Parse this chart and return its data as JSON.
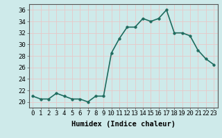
{
  "x": [
    0,
    1,
    2,
    3,
    4,
    5,
    6,
    7,
    8,
    9,
    10,
    11,
    12,
    13,
    14,
    15,
    16,
    17,
    18,
    19,
    20,
    21,
    22,
    23
  ],
  "y": [
    21,
    20.5,
    20.5,
    21.5,
    21,
    20.5,
    20.5,
    20,
    21,
    21,
    28.5,
    31,
    33,
    33,
    34.5,
    34,
    34.5,
    36,
    32,
    32,
    31.5,
    29,
    27.5,
    26.5
  ],
  "line_color": "#1e6b5e",
  "marker": "o",
  "marker_size": 2.5,
  "bg_color": "#ceeaea",
  "grid_color": "#e8c8c8",
  "xlabel": "Humidex (Indice chaleur)",
  "xlim": [
    -0.5,
    23.5
  ],
  "ylim": [
    19,
    37
  ],
  "yticks": [
    20,
    22,
    24,
    26,
    28,
    30,
    32,
    34,
    36
  ],
  "xticks": [
    0,
    1,
    2,
    3,
    4,
    5,
    6,
    7,
    8,
    9,
    10,
    11,
    12,
    13,
    14,
    15,
    16,
    17,
    18,
    19,
    20,
    21,
    22,
    23
  ],
  "xtick_labels": [
    "0",
    "1",
    "2",
    "3",
    "4",
    "5",
    "6",
    "7",
    "8",
    "9",
    "10",
    "11",
    "12",
    "13",
    "14",
    "15",
    "16",
    "17",
    "18",
    "19",
    "20",
    "21",
    "22",
    "23"
  ],
  "linewidth": 1.2,
  "xlabel_fontsize": 7.5,
  "tick_fontsize": 6.5
}
